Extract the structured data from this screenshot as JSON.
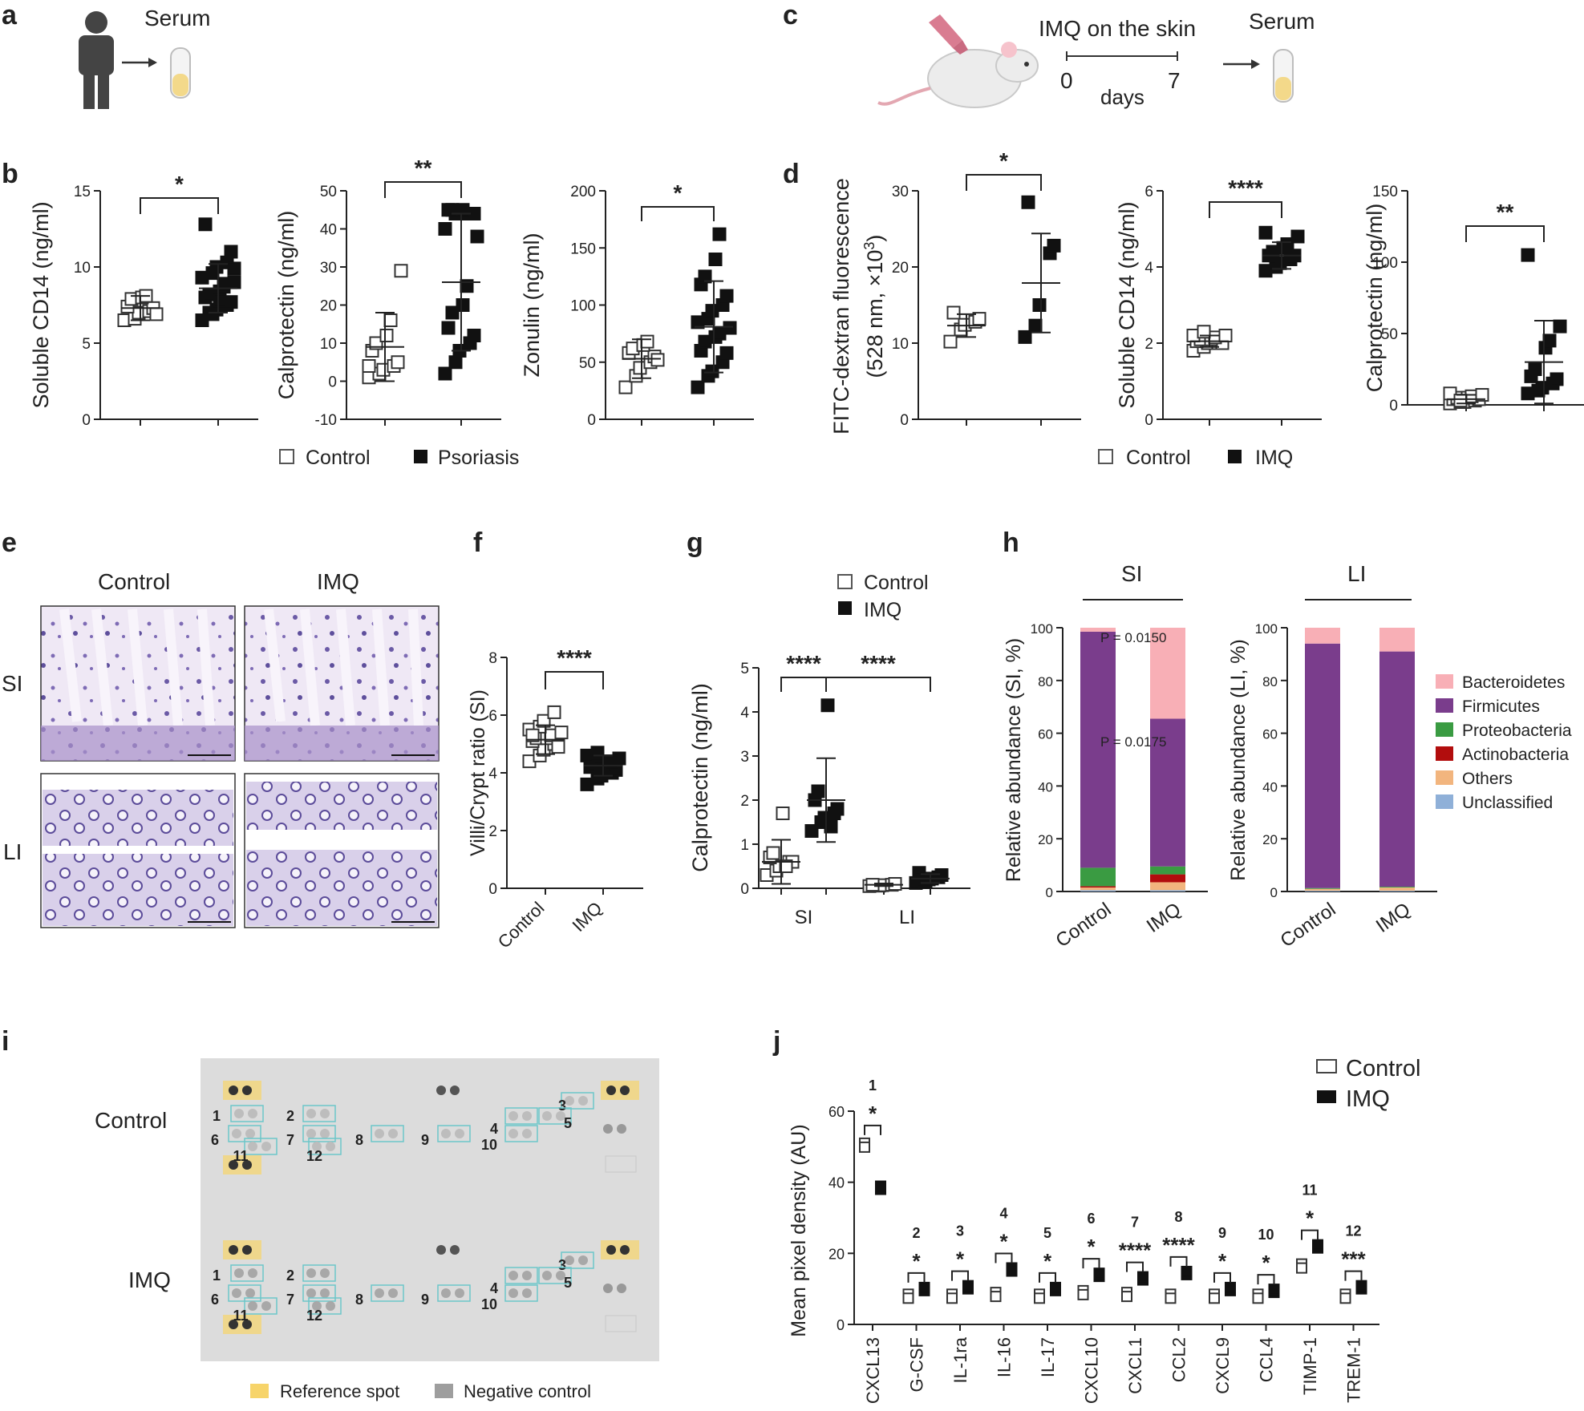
{
  "panel_labels": [
    "a",
    "b",
    "c",
    "d",
    "e",
    "f",
    "g",
    "h",
    "i",
    "j"
  ],
  "texts": {
    "a_serum": "Serum",
    "c_imq": "IMQ on the skin",
    "c_day0": "0",
    "c_day7": "7",
    "c_days": "days",
    "c_serum": "Serum",
    "e_control": "Control",
    "e_imq": "IMQ",
    "e_si": "SI",
    "e_li": "LI",
    "h_si": "SI",
    "h_li": "LI",
    "i_control": "Control",
    "i_imq": "IMQ",
    "i_ref": "Reference spot",
    "i_neg": "Negative control"
  },
  "legends": {
    "b": [
      "Control",
      "Psoriasis"
    ],
    "d": [
      "Control",
      "IMQ"
    ],
    "g": [
      "Control",
      "IMQ"
    ],
    "j": [
      "Control",
      "IMQ"
    ],
    "h": [
      "Bacteroidetes",
      "Firmicutes",
      "Proteobacteria",
      "Actinobacteria",
      "Others",
      "Unclassified"
    ]
  },
  "colors": {
    "bacteroidetes": "#f8afb6",
    "firmicutes": "#7a3d8c",
    "proteobacteria": "#3a9b42",
    "actinobacteria": "#b20d0d",
    "others": "#f2b57e",
    "unclassified": "#8fb0d8",
    "reference": "#f7d46a",
    "negative": "#9e9e9e",
    "array_bg": "#dcdcdc",
    "he_stain": "#b7a9d6"
  },
  "array": {
    "spot_labels": [
      "1",
      "2",
      "3",
      "4",
      "5",
      "6",
      "7",
      "8",
      "9",
      "10",
      "11",
      "12"
    ]
  },
  "chart_data": [
    {
      "id": "b1",
      "type": "scatter",
      "ylabel": "Soluble CD14 (ng/ml)",
      "ylim": [
        0,
        15
      ],
      "yticks": [
        0,
        5,
        10,
        15
      ],
      "groups": [
        {
          "name": "Control",
          "mean": 7.3,
          "sd": 0.8,
          "values": [
            6.5,
            6.6,
            7.0,
            7.1,
            7.3,
            7.4,
            7.9,
            8.0,
            8.1,
            6.9
          ]
        },
        {
          "name": "Psoriasis",
          "mean": 8.6,
          "sd": 1.6,
          "values": [
            6.5,
            6.9,
            7.2,
            7.5,
            7.7,
            8.0,
            8.2,
            8.4,
            8.7,
            9.0,
            9.3,
            9.6,
            10.0,
            10.3,
            11.0,
            12.8,
            7.0,
            7.8,
            8.9,
            9.9
          ]
        }
      ],
      "sig": "*"
    },
    {
      "id": "b2",
      "type": "scatter",
      "ylabel": "Calprotectin (ng/ml)",
      "ylim": [
        -10,
        50
      ],
      "yticks": [
        -10,
        0,
        10,
        20,
        30,
        40,
        50
      ],
      "groups": [
        {
          "name": "Control",
          "mean": 9,
          "sd": 9,
          "values": [
            1,
            2,
            3,
            4,
            5,
            8,
            10,
            12,
            16,
            29,
            4
          ]
        },
        {
          "name": "Psoriasis",
          "mean": 26,
          "sd": 18,
          "values": [
            2,
            5,
            8,
            10,
            12,
            14,
            18,
            20,
            25,
            38,
            40,
            44,
            44,
            44,
            44,
            45,
            45,
            45
          ]
        }
      ],
      "sig": "**"
    },
    {
      "id": "b3",
      "type": "scatter",
      "ylabel": "Zonulin (ng/ml)",
      "ylim": [
        0,
        200
      ],
      "yticks": [
        0,
        50,
        100,
        150,
        200
      ],
      "groups": [
        {
          "name": "Control",
          "mean": 53,
          "sd": 17,
          "values": [
            28,
            38,
            45,
            50,
            55,
            58,
            62,
            65,
            68,
            52
          ]
        },
        {
          "name": "Psoriasis",
          "mean": 81,
          "sd": 40,
          "values": [
            28,
            38,
            42,
            50,
            58,
            60,
            68,
            72,
            75,
            80,
            85,
            88,
            95,
            100,
            108,
            118,
            125,
            140,
            162
          ]
        }
      ],
      "sig": "*"
    },
    {
      "id": "d1",
      "type": "scatter",
      "ylabel": "FITC-dextran fluorescence",
      "ylabel2": "(528 nm, ×10",
      "ylabel_sup": "3",
      "ylabel_tail": ")",
      "ylim": [
        0,
        30
      ],
      "yticks": [
        0,
        10,
        20,
        30
      ],
      "groups": [
        {
          "name": "Control",
          "mean": 12.3,
          "sd": 1.5,
          "values": [
            10.2,
            11.8,
            12.4,
            12.8,
            13.2,
            14.0
          ]
        },
        {
          "name": "IMQ",
          "mean": 17.9,
          "sd": 6.5,
          "values": [
            10.8,
            12.3,
            15.0,
            21.8,
            22.8,
            28.5
          ]
        }
      ],
      "sig": "*"
    },
    {
      "id": "d2",
      "type": "scatter",
      "ylabel": "Soluble CD14 (ng/ml)",
      "ylim": [
        0,
        6
      ],
      "yticks": [
        0,
        2,
        4,
        6
      ],
      "groups": [
        {
          "name": "Control",
          "mean": 2.05,
          "sd": 0.15,
          "values": [
            1.8,
            1.9,
            2.0,
            2.0,
            2.0,
            2.05,
            2.1,
            2.1,
            2.15,
            2.2,
            2.2,
            2.3
          ]
        },
        {
          "name": "IMQ",
          "mean": 4.3,
          "sd": 0.35,
          "values": [
            3.9,
            4.0,
            4.1,
            4.2,
            4.3,
            4.3,
            4.4,
            4.5,
            4.6,
            4.8,
            4.9
          ]
        }
      ],
      "sig": "****"
    },
    {
      "id": "d3",
      "type": "scatter",
      "ylabel": "Calprotectin (ng/ml)",
      "ylim": [
        0,
        150
      ],
      "yticks": [
        0,
        50,
        100,
        150
      ],
      "groups": [
        {
          "name": "Control",
          "mean": 4,
          "sd": 3,
          "values": [
            1,
            2,
            2,
            3,
            4,
            4,
            5,
            5,
            6,
            7,
            8,
            3
          ]
        },
        {
          "name": "IMQ",
          "mean": 30,
          "sd": 29,
          "values": [
            8,
            10,
            12,
            15,
            18,
            20,
            25,
            40,
            45,
            55,
            105
          ]
        }
      ],
      "sig": "**"
    },
    {
      "id": "f",
      "type": "scatter",
      "ylabel": "Villi/Crypt ratio (SI)",
      "ylim": [
        0,
        8
      ],
      "yticks": [
        0,
        2,
        4,
        6,
        8
      ],
      "categories": [
        "Control",
        "IMQ"
      ],
      "groups": [
        {
          "name": "Control",
          "mean": 5.15,
          "sd": 0.5,
          "values": [
            4.4,
            4.6,
            4.8,
            5.0,
            5.0,
            5.1,
            5.2,
            5.2,
            5.3,
            5.4,
            5.5,
            5.6,
            5.8,
            6.1,
            4.9,
            5.3
          ]
        },
        {
          "name": "IMQ",
          "mean": 4.25,
          "sd": 0.35,
          "values": [
            3.6,
            3.8,
            3.9,
            4.0,
            4.1,
            4.2,
            4.3,
            4.3,
            4.4,
            4.5,
            4.6,
            4.7,
            4.1,
            4.4
          ]
        }
      ],
      "sig": "****"
    },
    {
      "id": "g",
      "type": "scatter",
      "ylabel": "Calprotectin (ng/ml)",
      "ylim": [
        0,
        5
      ],
      "yticks": [
        0,
        1,
        2,
        3,
        4,
        5
      ],
      "categories": [
        "SI",
        "LI"
      ],
      "groups": [
        {
          "name": "SI Control",
          "mean": 0.6,
          "sd": 0.5,
          "values": [
            0.3,
            0.4,
            0.5,
            0.6,
            0.6,
            0.7,
            0.8,
            1.7,
            0.5
          ]
        },
        {
          "name": "SI IMQ",
          "mean": 2.0,
          "sd": 0.95,
          "values": [
            1.3,
            1.5,
            1.6,
            1.7,
            1.8,
            2.0,
            2.2,
            4.15,
            1.4
          ]
        },
        {
          "name": "LI Control",
          "mean": 0.08,
          "sd": 0.03,
          "values": [
            0.05,
            0.06,
            0.07,
            0.08,
            0.1,
            0.08
          ]
        },
        {
          "name": "LI IMQ",
          "mean": 0.22,
          "sd": 0.1,
          "values": [
            0.12,
            0.15,
            0.2,
            0.25,
            0.3,
            0.35,
            0.18,
            0.22
          ]
        }
      ],
      "sig": [
        "****",
        "****"
      ]
    },
    {
      "id": "h1",
      "type": "stacked-bar",
      "title": "SI",
      "ylabel": "Relative abundance (SI, %)",
      "ylim": [
        0,
        100
      ],
      "yticks": [
        0,
        20,
        40,
        60,
        80,
        100
      ],
      "categories": [
        "Control",
        "IMQ"
      ],
      "series": [
        {
          "name": "Unclassified",
          "values": [
            0.5,
            0.5
          ]
        },
        {
          "name": "Others",
          "values": [
            1,
            3
          ]
        },
        {
          "name": "Actinobacteria",
          "values": [
            0.5,
            3
          ]
        },
        {
          "name": "Proteobacteria",
          "values": [
            7,
            3
          ]
        },
        {
          "name": "Firmicutes",
          "values": [
            89.5,
            56
          ]
        },
        {
          "name": "Bacteroidetes",
          "values": [
            1.5,
            34.5
          ]
        }
      ],
      "annotations": [
        "P = 0.0150",
        "P = 0.0175"
      ]
    },
    {
      "id": "h2",
      "type": "stacked-bar",
      "title": "LI",
      "ylabel": "Relative abundance (LI, %)",
      "ylim": [
        0,
        100
      ],
      "yticks": [
        0,
        20,
        40,
        60,
        80,
        100
      ],
      "categories": [
        "Control",
        "IMQ"
      ],
      "series": [
        {
          "name": "Unclassified",
          "values": [
            0.3,
            0.3
          ]
        },
        {
          "name": "Others",
          "values": [
            0.7,
            1.2
          ]
        },
        {
          "name": "Actinobacteria",
          "values": [
            0,
            0
          ]
        },
        {
          "name": "Proteobacteria",
          "values": [
            0.3,
            0.3
          ]
        },
        {
          "name": "Firmicutes",
          "values": [
            92.7,
            89.2
          ]
        },
        {
          "name": "Bacteroidetes",
          "values": [
            6,
            9
          ]
        }
      ]
    },
    {
      "id": "j",
      "type": "scatter",
      "ylabel": "Mean pixel density (AU)",
      "ylim": [
        0,
        60
      ],
      "yticks": [
        0,
        20,
        40,
        60
      ],
      "categories": [
        "CXCL13",
        "G-CSF",
        "IL-1ra",
        "IL-16",
        "IL-17",
        "CXCL10",
        "CXCL1",
        "CCL2",
        "CXCL9",
        "CCL4",
        "TIMP-1",
        "TREM-1"
      ],
      "numbers": [
        "1",
        "2",
        "3",
        "4",
        "5",
        "6",
        "7",
        "8",
        "9",
        "10",
        "11",
        "12"
      ],
      "control": [
        51,
        8.5,
        8.5,
        9,
        8.5,
        9.5,
        9,
        8.5,
        8.5,
        8.5,
        17,
        8.5
      ],
      "imq": [
        38,
        9.5,
        10,
        15,
        9.5,
        13.5,
        12.5,
        14,
        9.5,
        9,
        21.5,
        10
      ],
      "sig": [
        "*",
        "*",
        "*",
        "*",
        "*",
        "*",
        "****",
        "****",
        "*",
        "*",
        "*",
        "***"
      ]
    }
  ]
}
